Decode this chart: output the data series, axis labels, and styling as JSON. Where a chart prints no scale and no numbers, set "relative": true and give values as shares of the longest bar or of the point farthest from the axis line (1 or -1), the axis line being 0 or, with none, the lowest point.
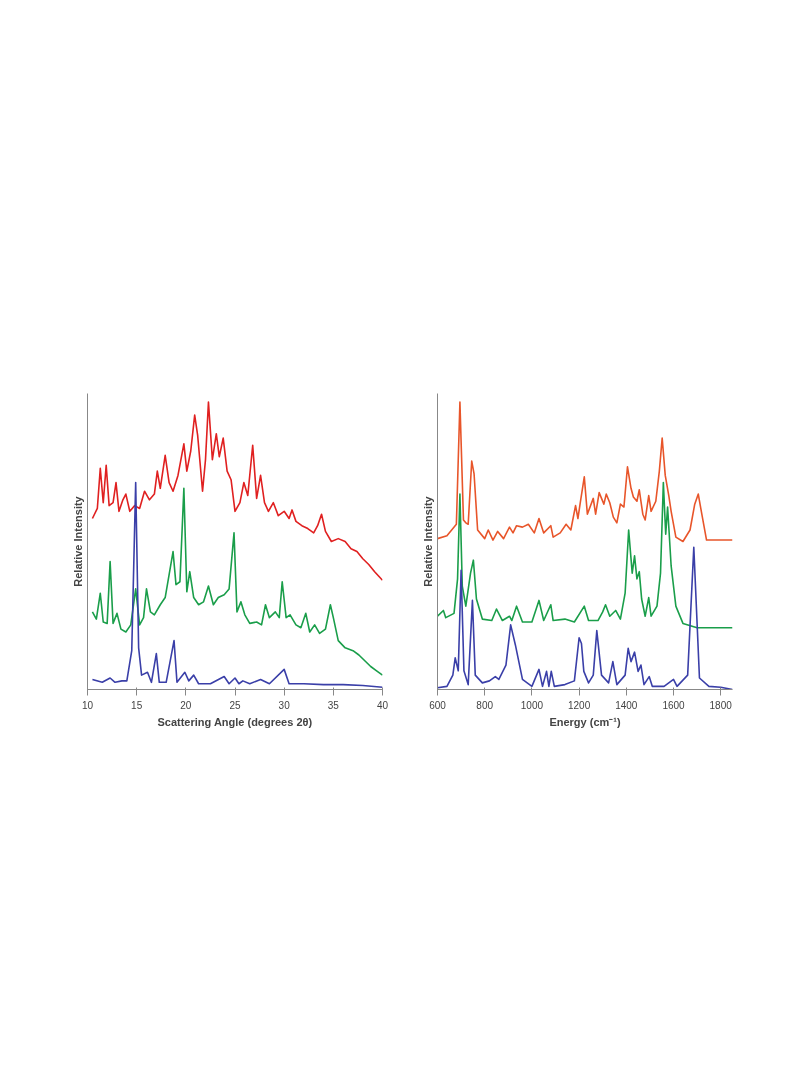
{
  "chart_data": [
    {
      "type": "line",
      "xlabel": "Scattering Angle (degrees 2θ)",
      "ylabel": "Relative Intensity",
      "relative": true,
      "xlim": [
        10,
        40
      ],
      "xticks": [
        10,
        15,
        20,
        25,
        30,
        35,
        40
      ],
      "grid": false,
      "series": [
        {
          "color": "#e02020",
          "x": [
            10.5,
            11.0,
            11.3,
            11.6,
            11.9,
            12.2,
            12.6,
            12.9,
            13.2,
            13.6,
            13.9,
            14.3,
            14.8,
            15.3,
            15.8,
            16.3,
            16.8,
            17.1,
            17.4,
            17.9,
            18.3,
            18.7,
            19.2,
            19.8,
            20.1,
            20.5,
            20.9,
            21.2,
            21.7,
            22.0,
            22.3,
            22.7,
            23.1,
            23.4,
            23.8,
            24.2,
            24.6,
            25.0,
            25.5,
            25.9,
            26.3,
            26.8,
            27.2,
            27.6,
            28.0,
            28.4,
            28.9,
            29.4,
            30.0,
            30.5,
            30.8,
            31.2,
            31.8,
            32.4,
            33.0,
            33.4,
            33.8,
            34.2,
            34.8,
            35.5,
            36.2,
            36.8,
            37.4,
            38.0,
            38.6,
            39.2,
            39.6,
            40.0
          ],
          "values": [
            0.595,
            0.63,
            0.77,
            0.65,
            0.78,
            0.64,
            0.65,
            0.72,
            0.62,
            0.66,
            0.68,
            0.62,
            0.64,
            0.63,
            0.69,
            0.66,
            0.68,
            0.76,
            0.7,
            0.815,
            0.72,
            0.69,
            0.745,
            0.855,
            0.76,
            0.83,
            0.955,
            0.885,
            0.69,
            0.8,
            1.0,
            0.8,
            0.89,
            0.81,
            0.875,
            0.76,
            0.73,
            0.62,
            0.65,
            0.72,
            0.675,
            0.85,
            0.665,
            0.745,
            0.65,
            0.62,
            0.65,
            0.605,
            0.62,
            0.595,
            0.625,
            0.585,
            0.57,
            0.56,
            0.545,
            0.57,
            0.61,
            0.55,
            0.515,
            0.525,
            0.515,
            0.49,
            0.48,
            0.455,
            0.435,
            0.41,
            0.395,
            0.38
          ]
        },
        {
          "color": "#1a9e4a",
          "x": [
            10.5,
            10.9,
            11.3,
            11.6,
            12.0,
            12.3,
            12.6,
            13.0,
            13.4,
            13.9,
            14.4,
            14.9,
            15.3,
            15.7,
            16.0,
            16.4,
            16.8,
            17.4,
            17.9,
            18.3,
            18.7,
            19.0,
            19.4,
            19.8,
            20.1,
            20.4,
            20.8,
            21.3,
            21.8,
            22.3,
            22.8,
            23.3,
            23.9,
            24.4,
            24.9,
            25.2,
            25.6,
            26.0,
            26.5,
            27.2,
            27.7,
            28.1,
            28.5,
            29.1,
            29.5,
            29.8,
            30.2,
            30.6,
            31.2,
            31.7,
            32.2,
            32.6,
            33.1,
            33.6,
            34.2,
            34.7,
            35.0,
            35.5,
            36.2,
            37.0,
            37.6,
            38.2,
            38.8,
            39.4,
            40.0
          ],
          "values": [
            0.27,
            0.245,
            0.335,
            0.235,
            0.23,
            0.445,
            0.23,
            0.265,
            0.21,
            0.2,
            0.225,
            0.35,
            0.225,
            0.25,
            0.35,
            0.27,
            0.26,
            0.295,
            0.32,
            0.4,
            0.48,
            0.365,
            0.375,
            0.7,
            0.34,
            0.41,
            0.32,
            0.295,
            0.305,
            0.36,
            0.295,
            0.32,
            0.33,
            0.35,
            0.545,
            0.27,
            0.305,
            0.26,
            0.23,
            0.235,
            0.225,
            0.295,
            0.25,
            0.27,
            0.25,
            0.375,
            0.25,
            0.26,
            0.225,
            0.215,
            0.265,
            0.2,
            0.225,
            0.195,
            0.21,
            0.295,
            0.25,
            0.17,
            0.145,
            0.135,
            0.12,
            0.1,
            0.08,
            0.065,
            0.05
          ]
        },
        {
          "color": "#3a3fa8",
          "x": [
            10.5,
            11.5,
            12.3,
            12.8,
            13.5,
            14.0,
            14.5,
            14.9,
            15.2,
            15.5,
            16.1,
            16.5,
            17.0,
            17.3,
            18.0,
            18.8,
            19.1,
            19.9,
            20.3,
            20.8,
            21.3,
            22.5,
            23.9,
            24.4,
            25.0,
            25.4,
            25.8,
            26.5,
            27.6,
            28.5,
            30.0,
            30.5,
            32.0,
            34.0,
            36.0,
            38.0,
            40.0
          ],
          "values": [
            0.035,
            0.025,
            0.04,
            0.025,
            0.03,
            0.03,
            0.135,
            0.72,
            0.145,
            0.05,
            0.06,
            0.025,
            0.125,
            0.025,
            0.025,
            0.17,
            0.025,
            0.06,
            0.03,
            0.05,
            0.02,
            0.02,
            0.045,
            0.02,
            0.04,
            0.02,
            0.03,
            0.02,
            0.035,
            0.02,
            0.07,
            0.02,
            0.02,
            0.017,
            0.017,
            0.014,
            0.008
          ]
        }
      ]
    },
    {
      "type": "line",
      "xlabel": "Energy (cm⁻¹)",
      "ylabel": "Relative Intensity",
      "relative": true,
      "xlim": [
        600,
        1850
      ],
      "xticks": [
        600,
        800,
        1000,
        1200,
        1400,
        1600,
        1800
      ],
      "grid": false,
      "series": [
        {
          "color": "#e8552a",
          "x": [
            600,
            640,
            680,
            695,
            710,
            720,
            730,
            745,
            755,
            770,
            800,
            815,
            835,
            855,
            880,
            905,
            920,
            935,
            960,
            985,
            1010,
            1030,
            1050,
            1080,
            1090,
            1120,
            1145,
            1165,
            1185,
            1195,
            1205,
            1222,
            1235,
            1260,
            1270,
            1285,
            1305,
            1315,
            1330,
            1345,
            1360,
            1375,
            1390,
            1405,
            1420,
            1430,
            1445,
            1455,
            1470,
            1480,
            1495,
            1505,
            1525,
            1540,
            1552,
            1565,
            1580,
            1590,
            1610,
            1640,
            1670,
            1690,
            1705,
            1720,
            1740,
            1800,
            1850
          ],
          "values": [
            0.525,
            0.535,
            0.575,
            1.0,
            0.59,
            0.58,
            0.575,
            0.795,
            0.75,
            0.555,
            0.525,
            0.555,
            0.52,
            0.55,
            0.525,
            0.565,
            0.545,
            0.57,
            0.565,
            0.575,
            0.545,
            0.595,
            0.545,
            0.57,
            0.53,
            0.545,
            0.575,
            0.555,
            0.64,
            0.595,
            0.65,
            0.74,
            0.61,
            0.665,
            0.61,
            0.685,
            0.645,
            0.68,
            0.65,
            0.6,
            0.58,
            0.645,
            0.635,
            0.775,
            0.7,
            0.67,
            0.655,
            0.695,
            0.61,
            0.59,
            0.675,
            0.62,
            0.655,
            0.76,
            0.875,
            0.745,
            0.675,
            0.62,
            0.53,
            0.515,
            0.555,
            0.645,
            0.68,
            0.61,
            0.52,
            0.52,
            0.52
          ]
        },
        {
          "color": "#1a9e4a",
          "x": [
            600,
            625,
            635,
            670,
            685,
            695,
            705,
            720,
            740,
            752,
            765,
            790,
            830,
            850,
            875,
            905,
            915,
            935,
            960,
            1000,
            1030,
            1050,
            1080,
            1090,
            1140,
            1180,
            1222,
            1240,
            1280,
            1300,
            1312,
            1330,
            1355,
            1375,
            1395,
            1410,
            1425,
            1435,
            1445,
            1455,
            1465,
            1480,
            1495,
            1505,
            1530,
            1545,
            1557,
            1567,
            1575,
            1590,
            1610,
            1640,
            1700,
            1800,
            1850
          ],
          "values": [
            0.255,
            0.275,
            0.25,
            0.265,
            0.385,
            0.68,
            0.36,
            0.29,
            0.405,
            0.45,
            0.315,
            0.245,
            0.24,
            0.28,
            0.24,
            0.255,
            0.24,
            0.29,
            0.235,
            0.235,
            0.31,
            0.24,
            0.295,
            0.24,
            0.245,
            0.235,
            0.29,
            0.24,
            0.24,
            0.27,
            0.295,
            0.255,
            0.275,
            0.245,
            0.335,
            0.555,
            0.405,
            0.465,
            0.385,
            0.41,
            0.315,
            0.255,
            0.32,
            0.255,
            0.29,
            0.405,
            0.72,
            0.54,
            0.635,
            0.43,
            0.29,
            0.23,
            0.215,
            0.215,
            0.215
          ]
        },
        {
          "color": "#3a3fa8",
          "x": [
            600,
            640,
            665,
            675,
            688,
            700,
            712,
            730,
            748,
            760,
            790,
            820,
            845,
            860,
            890,
            910,
            930,
            960,
            1000,
            1030,
            1045,
            1062,
            1072,
            1082,
            1095,
            1140,
            1180,
            1200,
            1210,
            1220,
            1240,
            1260,
            1275,
            1295,
            1325,
            1343,
            1360,
            1395,
            1408,
            1420,
            1435,
            1450,
            1462,
            1475,
            1497,
            1510,
            1560,
            1600,
            1615,
            1660,
            1686,
            1710,
            1750,
            1800,
            1850
          ],
          "values": [
            0.006,
            0.011,
            0.05,
            0.11,
            0.065,
            0.415,
            0.065,
            0.017,
            0.31,
            0.05,
            0.023,
            0.03,
            0.045,
            0.035,
            0.085,
            0.225,
            0.155,
            0.035,
            0.011,
            0.07,
            0.011,
            0.063,
            0.011,
            0.063,
            0.011,
            0.017,
            0.03,
            0.18,
            0.16,
            0.063,
            0.023,
            0.05,
            0.205,
            0.05,
            0.023,
            0.097,
            0.017,
            0.05,
            0.143,
            0.097,
            0.13,
            0.063,
            0.085,
            0.017,
            0.045,
            0.011,
            0.011,
            0.035,
            0.011,
            0.05,
            0.495,
            0.04,
            0.011,
            0.008,
            0.0
          ]
        }
      ]
    }
  ]
}
